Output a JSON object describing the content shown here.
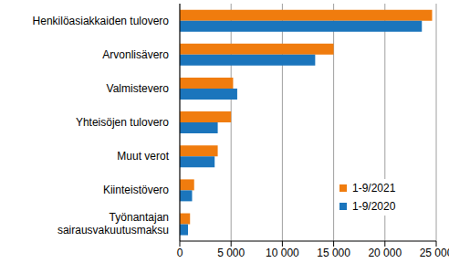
{
  "chart_data": {
    "type": "bar",
    "orientation": "horizontal",
    "categories": [
      "Henkilöasiakkaiden tulovero",
      "Arvonlisävero",
      "Valmistevero",
      "Yhteisöjen tulovero",
      "Muut verot",
      "Kiinteistövero",
      "Työnantajan sairausvakuutusmaksu"
    ],
    "series": [
      {
        "name": "1-9/2021",
        "color": "#f07c0e",
        "values": [
          24600,
          15000,
          5200,
          5000,
          3700,
          1400,
          1000
        ]
      },
      {
        "name": "1-9/2020",
        "color": "#1b75bc",
        "values": [
          23600,
          13200,
          5600,
          3700,
          3400,
          1200,
          800
        ]
      }
    ],
    "xlim": [
      0,
      25000
    ],
    "xticks": [
      0,
      {
        "value": 5000,
        "label": "5 000"
      },
      {
        "value": 10000,
        "label": "10 000"
      },
      {
        "value": 15000,
        "label": "15 000"
      },
      {
        "value": 20000,
        "label": "20 000"
      },
      {
        "value": 25000,
        "label": "25 000"
      }
    ],
    "grid": true,
    "legend": "lower right"
  }
}
